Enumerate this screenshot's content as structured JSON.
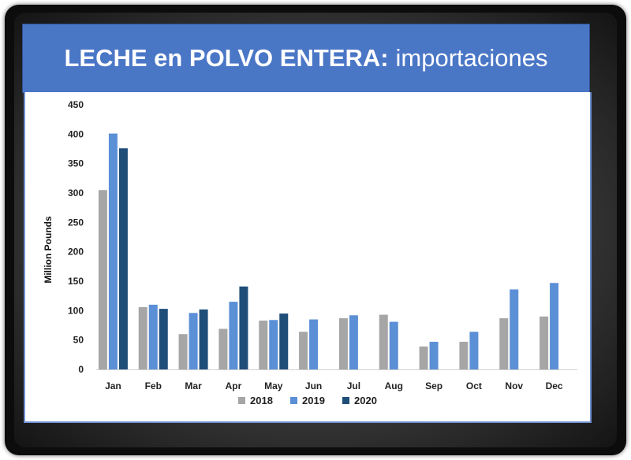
{
  "banner": {
    "title_bold": "LECHE en POLVO ENTERA:",
    "title_rest": "importaciones"
  },
  "colors": {
    "banner": "#4a76c6",
    "2018": "#a6a6a6",
    "2019": "#5b8fd6",
    "2020": "#1f4e79"
  },
  "chart_data": {
    "type": "bar",
    "title": "",
    "xlabel": "",
    "ylabel": "Million Pounds",
    "ylim": [
      0,
      450
    ],
    "yticks": [
      0,
      50,
      100,
      150,
      200,
      250,
      300,
      350,
      400,
      450
    ],
    "categories": [
      "Jan",
      "Feb",
      "Mar",
      "Apr",
      "May",
      "Jun",
      "Jul",
      "Aug",
      "Sep",
      "Oct",
      "Nov",
      "Dec"
    ],
    "series": [
      {
        "name": "2018",
        "color": "#a6a6a6",
        "values": [
          305,
          106,
          60,
          69,
          83,
          64,
          87,
          93,
          39,
          47,
          87,
          90
        ]
      },
      {
        "name": "2019",
        "color": "#5b8fd6",
        "values": [
          401,
          110,
          96,
          115,
          84,
          85,
          92,
          81,
          47,
          64,
          136,
          147
        ]
      },
      {
        "name": "2020",
        "color": "#1f4e79",
        "values": [
          376,
          103,
          102,
          141,
          95,
          null,
          null,
          null,
          null,
          null,
          null,
          null
        ]
      }
    ],
    "legend": "bottom",
    "grid": false
  }
}
